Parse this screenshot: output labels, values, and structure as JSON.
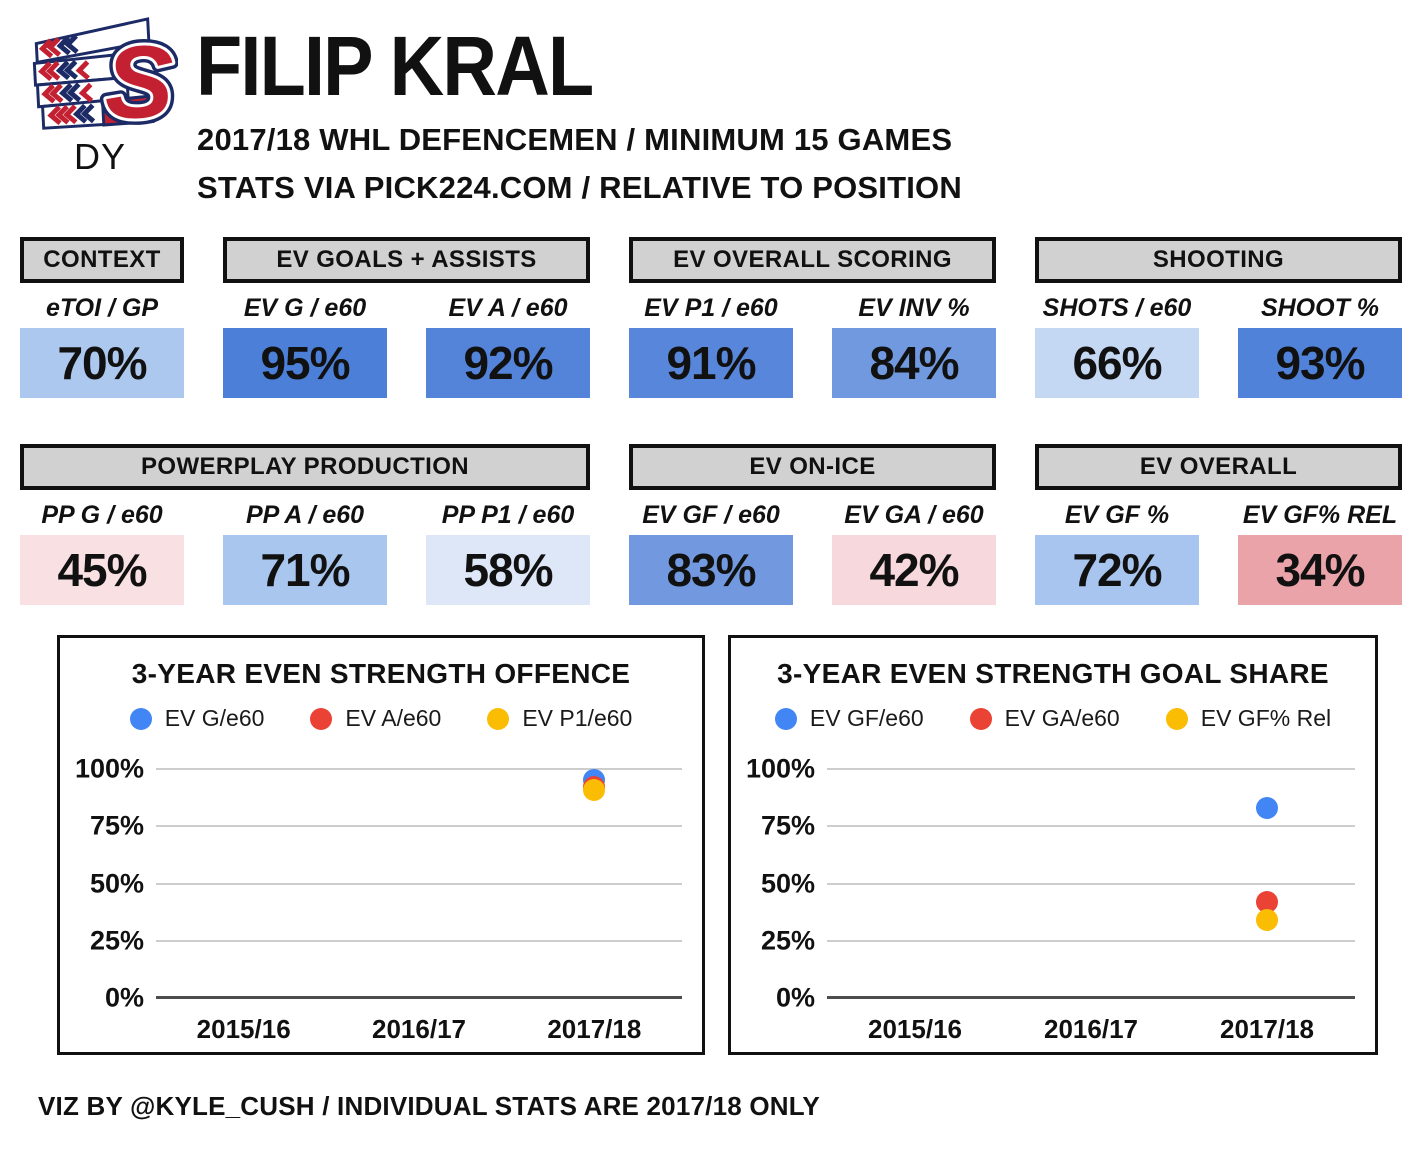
{
  "header": {
    "team_logo": "spokane-chiefs-logo",
    "position_label": "DY",
    "player_name": "FILIP KRAL",
    "subtitle_line1": "2017/18 WHL DEFENCEMEN / MINIMUM 15 GAMES",
    "subtitle_line2": "STATS VIA PICK224.COM / RELATIVE TO POSITION"
  },
  "stat_groups": [
    {
      "title": "CONTEXT",
      "cols": [
        {
          "label": "eTOI / GP",
          "value": "70%",
          "bg": "#adc8ef"
        }
      ]
    },
    {
      "title": "EV GOALS + ASSISTS",
      "cols": [
        {
          "label": "EV G / e60",
          "value": "95%",
          "bg": "#4c80d8"
        },
        {
          "label": "EV A / e60",
          "value": "92%",
          "bg": "#5484d9"
        }
      ]
    },
    {
      "title": "EV OVERALL SCORING",
      "cols": [
        {
          "label": "EV P1 / e60",
          "value": "91%",
          "bg": "#5786da"
        },
        {
          "label": "EV INV %",
          "value": "84%",
          "bg": "#7099df"
        }
      ]
    },
    {
      "title": "SHOOTING",
      "cols": [
        {
          "label": "SHOTS / e60",
          "value": "66%",
          "bg": "#c4d7f3"
        },
        {
          "label": "SHOOT %",
          "value": "93%",
          "bg": "#5182d9"
        }
      ]
    },
    {
      "title": "POWERPLAY PRODUCTION",
      "cols": [
        {
          "label": "PP G / e60",
          "value": "45%",
          "bg": "#f9e0e3"
        },
        {
          "label": "PP A / e60",
          "value": "71%",
          "bg": "#a9c6ef"
        },
        {
          "label": "PP P1 / e60",
          "value": "58%",
          "bg": "#dde7f7"
        }
      ]
    },
    {
      "title": "EV ON-ICE",
      "cols": [
        {
          "label": "EV GF / e60",
          "value": "83%",
          "bg": "#7299df"
        },
        {
          "label": "EV GA / e60",
          "value": "42%",
          "bg": "#f7d8dc"
        }
      ]
    },
    {
      "title": "EV OVERALL",
      "cols": [
        {
          "label": "EV GF %",
          "value": "72%",
          "bg": "#a7c5ef"
        },
        {
          "label": "EV GF% REL",
          "value": "34%",
          "bg": "#eaa3a9"
        }
      ]
    }
  ],
  "chart_data": [
    {
      "type": "scatter",
      "title": "3-YEAR EVEN STRENGTH OFFENCE",
      "categories": [
        "2015/16",
        "2016/17",
        "2017/18"
      ],
      "series": [
        {
          "name": "EV G/e60",
          "color": "#4285f4",
          "values": [
            null,
            null,
            95
          ]
        },
        {
          "name": "EV A/e60",
          "color": "#ea4335",
          "values": [
            null,
            null,
            92
          ]
        },
        {
          "name": "EV P1/e60",
          "color": "#fbbc04",
          "values": [
            null,
            null,
            91
          ]
        }
      ],
      "ylim": [
        0,
        100
      ],
      "yticks": [
        0,
        25,
        50,
        75,
        100
      ],
      "grid": true,
      "legend_position": "top"
    },
    {
      "type": "scatter",
      "title": "3-YEAR EVEN STRENGTH GOAL SHARE",
      "categories": [
        "2015/16",
        "2016/17",
        "2017/18"
      ],
      "series": [
        {
          "name": "EV GF/e60",
          "color": "#4285f4",
          "values": [
            null,
            null,
            83
          ]
        },
        {
          "name": "EV GA/e60",
          "color": "#ea4335",
          "values": [
            null,
            null,
            42
          ]
        },
        {
          "name": "EV GF% Rel",
          "color": "#fbbc04",
          "values": [
            null,
            null,
            34
          ]
        }
      ],
      "ylim": [
        0,
        100
      ],
      "yticks": [
        0,
        25,
        50,
        75,
        100
      ],
      "grid": true,
      "legend_position": "top"
    }
  ],
  "footer": {
    "credit": "VIZ BY @KYLE_CUSH / INDIVIDUAL STATS ARE 2017/18 ONLY"
  }
}
